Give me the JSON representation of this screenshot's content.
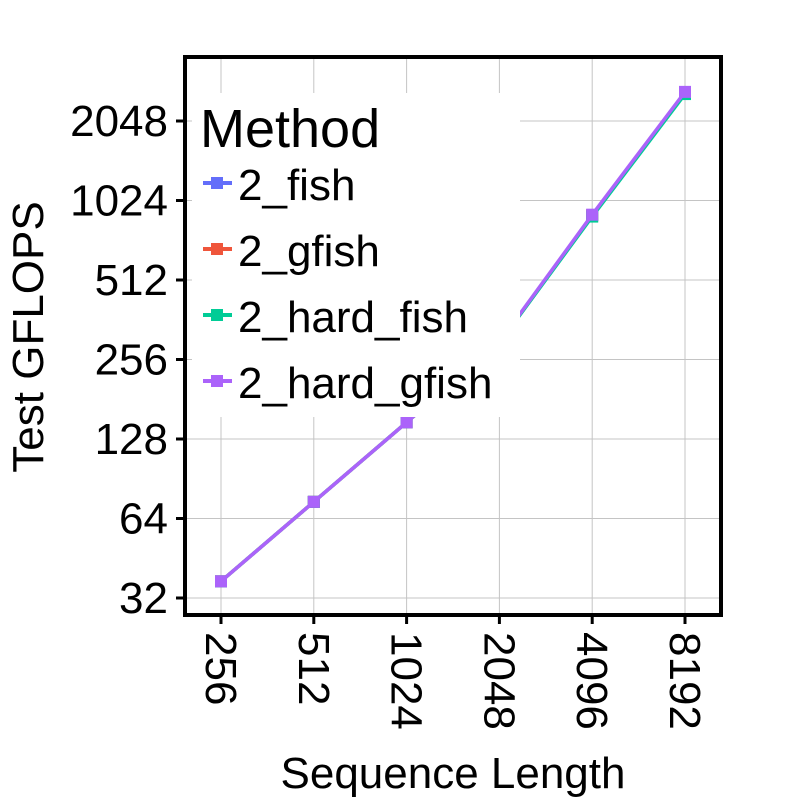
{
  "chart_data": {
    "type": "line",
    "xlabel": "Sequence Length",
    "ylabel": "Test GFLOPS",
    "x": [
      256,
      512,
      1024,
      2048,
      4096,
      8192
    ],
    "x_tick_labels": [
      "256",
      "512",
      "1024",
      "2048",
      "4096",
      "8192"
    ],
    "x_scale": "log2",
    "y_scale": "log2",
    "y_ticks": [
      32,
      64,
      128,
      256,
      512,
      1024,
      2048
    ],
    "y_tick_labels": [
      "32",
      "64",
      "128",
      "256",
      "512",
      "1024",
      "2048"
    ],
    "xlim": [
      256,
      8192
    ],
    "ylim": [
      30,
      4200
    ],
    "grid": true,
    "legend": {
      "title": "Method",
      "position": "top-left"
    },
    "series": [
      {
        "name": "2_fish",
        "color": "#636efa",
        "values": [
          37,
          74,
          148,
          296,
          900,
          2620
        ]
      },
      {
        "name": "2_gfish",
        "color": "#ef553b",
        "values": [
          37,
          74,
          148,
          296,
          900,
          2620
        ]
      },
      {
        "name": "2_hard_fish",
        "color": "#00cc96",
        "values": [
          37,
          74,
          148,
          296,
          890,
          2590
        ]
      },
      {
        "name": "2_hard_gfish",
        "color": "#ab63fa",
        "values": [
          37,
          74,
          148,
          298,
          905,
          2640
        ]
      }
    ]
  }
}
